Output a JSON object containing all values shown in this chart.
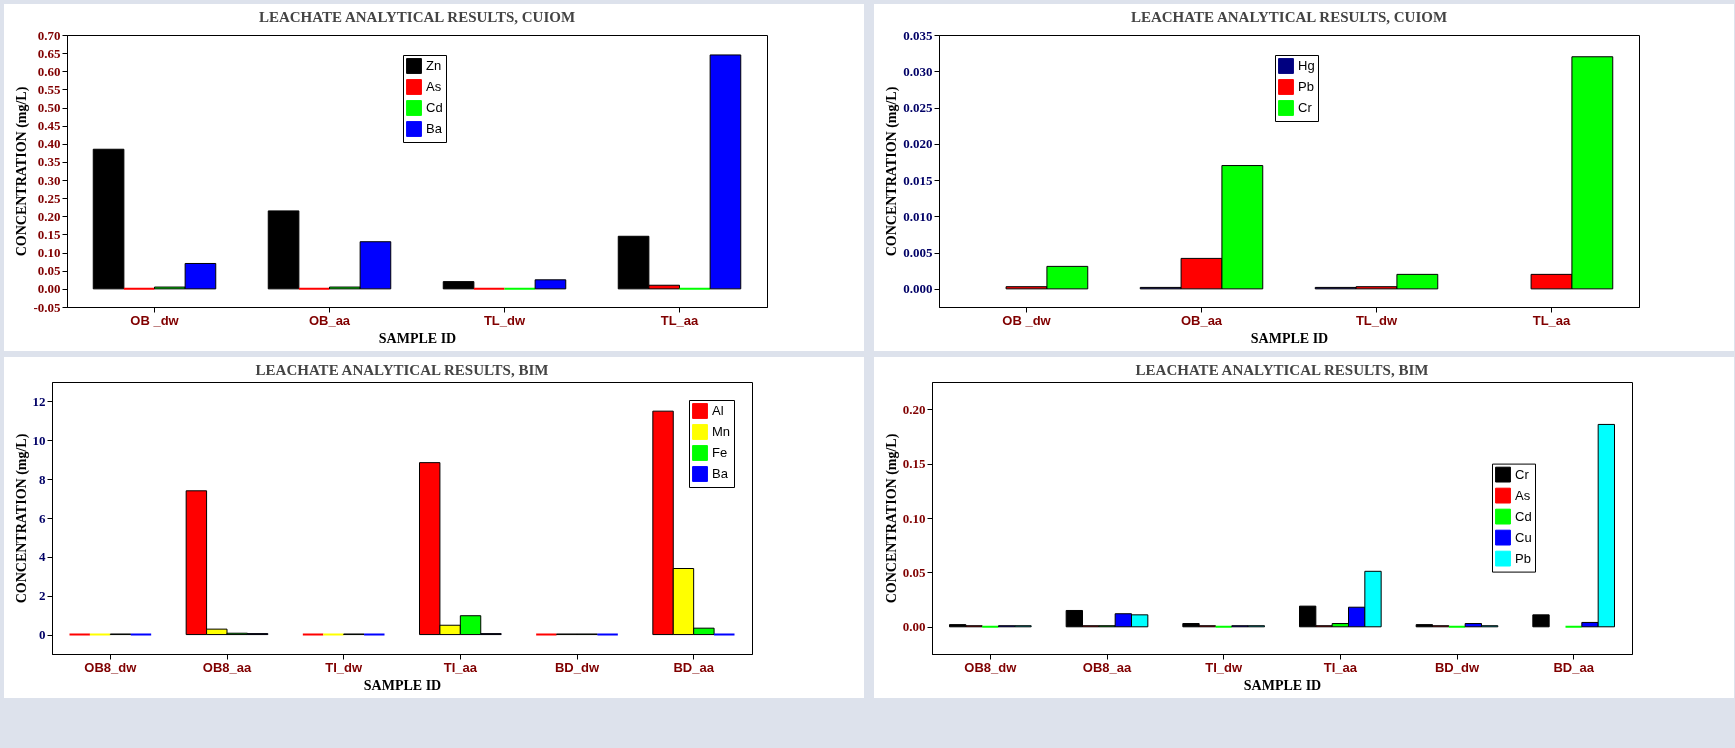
{
  "chart_data": [
    {
      "type": "bar",
      "title": "LEACHATE ANALYTICAL RESULTS, CUIOM",
      "xlabel": "SAMPLE ID",
      "ylabel": "CONCENTRATION (mg/L)",
      "categories": [
        "OB _dw",
        "OB_aa",
        "TL_dw",
        "TL_aa"
      ],
      "series": [
        {
          "name": "Zn",
          "color": "#000000",
          "values": [
            0.385,
            0.215,
            0.02,
            0.145
          ]
        },
        {
          "name": "As",
          "color": "#ff0000",
          "values": [
            0.0,
            0.0,
            0.0,
            0.01
          ]
        },
        {
          "name": "Cd",
          "color": "#00ff00",
          "values": [
            0.005,
            0.005,
            0.0,
            0.0
          ]
        },
        {
          "name": "Ba",
          "color": "#0000ff",
          "values": [
            0.07,
            0.13,
            0.025,
            0.645
          ]
        }
      ],
      "ylim": [
        -0.05,
        0.7
      ],
      "yticks": [
        {
          "value": -0.05,
          "label": "-0.05"
        },
        {
          "value": 0,
          "label": "0.00"
        },
        {
          "value": 0.05,
          "label": "0.05"
        },
        {
          "value": 0.1,
          "label": "0.10"
        },
        {
          "value": 0.15,
          "label": "0.15"
        },
        {
          "value": 0.2,
          "label": "0.20"
        },
        {
          "value": 0.25,
          "label": "0.25"
        },
        {
          "value": 0.3,
          "label": "0.30"
        },
        {
          "value": 0.35,
          "label": "0.35"
        },
        {
          "value": 0.4,
          "label": "0.40"
        },
        {
          "value": 0.45,
          "label": "0.45"
        },
        {
          "value": 0.5,
          "label": "0.50"
        },
        {
          "value": 0.55,
          "label": "0.55"
        },
        {
          "value": 0.6,
          "label": "0.60"
        },
        {
          "value": 0.65,
          "label": "0.65"
        },
        {
          "value": 0.7,
          "label": "0.70"
        }
      ],
      "legend": "top"
    },
    {
      "type": "bar",
      "title": "LEACHATE ANALYTICAL RESULTS, CUIOM",
      "xlabel": "SAMPLE ID",
      "ylabel": "CONCENTRATION (mg/L)",
      "categories": [
        "OB _dw",
        "OB_aa",
        "TL_dw",
        "TL_aa"
      ],
      "series": [
        {
          "name": "Hg",
          "color": "#000080",
          "values": [
            null,
            0.0002,
            0.0002,
            null
          ]
        },
        {
          "name": "Pb",
          "color": "#ff0000",
          "values": [
            0.0003,
            0.0042,
            0.0003,
            0.002
          ]
        },
        {
          "name": "Cr",
          "color": "#00ff00",
          "values": [
            0.0031,
            0.017,
            0.002,
            0.032
          ]
        }
      ],
      "ylim": [
        -0.0025,
        0.035
      ],
      "yticks": [
        {
          "value": 0,
          "label": "0.000"
        },
        {
          "value": 0.005,
          "label": "0.005"
        },
        {
          "value": 0.01,
          "label": "0.010"
        },
        {
          "value": 0.015,
          "label": "0.015"
        },
        {
          "value": 0.02,
          "label": "0.020"
        },
        {
          "value": 0.025,
          "label": "0.025"
        },
        {
          "value": 0.03,
          "label": "0.030"
        },
        {
          "value": 0.035,
          "label": "0.035"
        }
      ],
      "legend": "top"
    },
    {
      "type": "bar",
      "title": "LEACHATE ANALYTICAL RESULTS, BIM",
      "xlabel": "SAMPLE ID",
      "ylabel": "CONCENTRATION (mg/L)",
      "categories": [
        "OB8_dw",
        "OB8_aa",
        "TI_dw",
        "TI_aa",
        "BD_dw",
        "BD_aa"
      ],
      "series": [
        {
          "name": "Al",
          "color": "#ff0000",
          "values": [
            0,
            7.4,
            0,
            8.85,
            0,
            11.5
          ]
        },
        {
          "name": "Mn",
          "color": "#ffff00",
          "values": [
            0,
            0.28,
            0,
            0.48,
            0.03,
            3.4
          ]
        },
        {
          "name": "Fe",
          "color": "#00ff00",
          "values": [
            0.03,
            0.07,
            0.03,
            0.97,
            0.03,
            0.33
          ]
        },
        {
          "name": "Ba",
          "color": "#0000ff",
          "values": [
            0,
            0.05,
            0,
            0.05,
            0,
            0
          ]
        }
      ],
      "ylim": [
        -1,
        13
      ],
      "yticks": [
        0,
        2,
        4,
        6,
        8,
        10,
        12
      ],
      "legend": "top right"
    },
    {
      "type": "bar",
      "title": "LEACHATE ANALYTICAL RESULTS, BIM",
      "xlabel": "SAMPLE ID",
      "ylabel": "CONCENTRATION (mg/L)",
      "categories": [
        "OB8_dw",
        "OB8_aa",
        "TI_dw",
        "TI_aa",
        "BD_dw",
        "BD_aa"
      ],
      "series": [
        {
          "name": "Cr",
          "color": "#000000",
          "values": [
            0.002,
            0.015,
            0.003,
            0.019,
            0.002,
            0.011
          ]
        },
        {
          "name": "As",
          "color": "#ff0000",
          "values": [
            0.001,
            0.001,
            0.001,
            0.001,
            0.001,
            null
          ]
        },
        {
          "name": "Cd",
          "color": "#00ff00",
          "values": [
            0,
            0.001,
            0,
            0.003,
            0,
            0
          ]
        },
        {
          "name": "Cu",
          "color": "#0000ff",
          "values": [
            0.001,
            0.012,
            0.001,
            0.018,
            0.003,
            0.004
          ]
        },
        {
          "name": "Pb",
          "color": "#00ffff",
          "values": [
            0.001,
            0.011,
            0.001,
            0.051,
            0.001,
            0.186
          ]
        }
      ],
      "ylim": [
        -0.025,
        0.225
      ],
      "yticks": [
        {
          "value": 0,
          "label": "0.00"
        },
        {
          "value": 0.05,
          "label": "0.05"
        },
        {
          "value": 0.1,
          "label": "0.10"
        },
        {
          "value": 0.15,
          "label": "0.15"
        },
        {
          "value": 0.2,
          "label": "0.20"
        }
      ],
      "legend": "right"
    }
  ]
}
